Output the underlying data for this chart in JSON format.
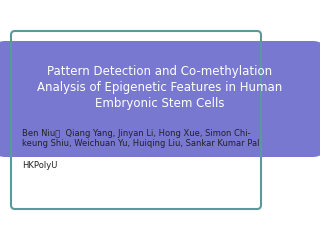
{
  "title_line1": "Pattern Detection and Co-methylation",
  "title_line2": "Analysis of Epigenetic Features in Human",
  "title_line3": "Embryonic Stem Cells",
  "authors_line1": "Ben Niu，  Qiang Yang, Jinyan Li, Hong Xue, Simon Chi-",
  "authors_line2": "keung Shiu, Weichuan Yu, Huiqing Liu, Sankar Kumar Pal",
  "institution": "HKPolyU",
  "background_color": "#ffffff",
  "border_color": "#5a9a9a",
  "banner_color": "#7878d0",
  "title_text_color": "#ffffff",
  "body_text_color": "#222222",
  "title_fontsize": 8.5,
  "body_fontsize": 6.0,
  "inst_fontsize": 6.0
}
